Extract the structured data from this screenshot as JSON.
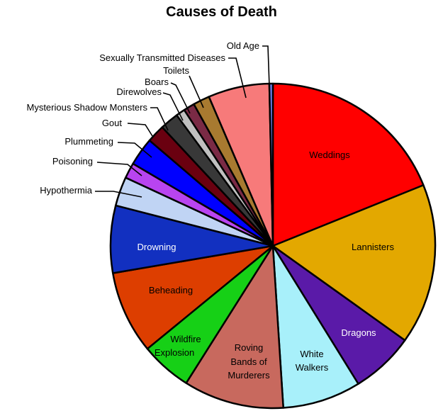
{
  "chart_data": {
    "type": "pie",
    "title": "Causes of Death",
    "unit": "percent",
    "start": "top, clockwise",
    "slices": [
      {
        "label": "Weddings",
        "value": 18.9,
        "color": "#ff0000",
        "inside": true,
        "text_color": "#000000"
      },
      {
        "label": "Lannisters",
        "value": 16.0,
        "color": "#e3a800",
        "inside": true,
        "text_color": "#000000"
      },
      {
        "label": "Dragons",
        "value": 6.3,
        "color": "#5a1aa8",
        "inside": true,
        "text_color": "#ffffff"
      },
      {
        "label": "White Walkers",
        "value": 7.8,
        "color": "#a8f0fa",
        "inside": true,
        "text_color": "#000000"
      },
      {
        "label": "Roving Bands of Murderers",
        "value": 10.0,
        "color": "#c8695e",
        "inside": true,
        "text_color": "#000000"
      },
      {
        "label": "Wildfire Explosion",
        "value": 5.1,
        "color": "#16d016",
        "inside": true,
        "text_color": "#000000"
      },
      {
        "label": "Beheading",
        "value": 8.25,
        "color": "#dd3e00",
        "inside": true,
        "text_color": "#000000"
      },
      {
        "label": "Drowning",
        "value": 6.7,
        "color": "#1230c0",
        "inside": true,
        "text_color": "#ffffff"
      },
      {
        "label": "Hypothermia",
        "value": 2.9,
        "color": "#c0d4f4",
        "inside": false
      },
      {
        "label": "Poisoning",
        "value": 1.55,
        "color": "#b844f0",
        "inside": false
      },
      {
        "label": "Plummeting",
        "value": 2.8,
        "color": "#0000ff",
        "inside": false
      },
      {
        "label": "Gout",
        "value": 1.8,
        "color": "#6a0010",
        "inside": false
      },
      {
        "label": "Mysterious Shadow Monsters",
        "value": 1.85,
        "color": "#383838",
        "inside": false
      },
      {
        "label": "Direwolves",
        "value": 0.9,
        "color": "#c0c0c0",
        "inside": false
      },
      {
        "label": "Boars",
        "value": 1.1,
        "color": "#7a2a45",
        "inside": false
      },
      {
        "label": "Toilets",
        "value": 1.65,
        "color": "#a87a30",
        "inside": false
      },
      {
        "label": "Sexually Transmitted Diseases",
        "value": 6.1,
        "color": "#f77a7a",
        "inside": false
      },
      {
        "label": "Old Age",
        "value": 0.35,
        "color": "#6f80f0",
        "inside": false
      }
    ],
    "legend": "none"
  }
}
